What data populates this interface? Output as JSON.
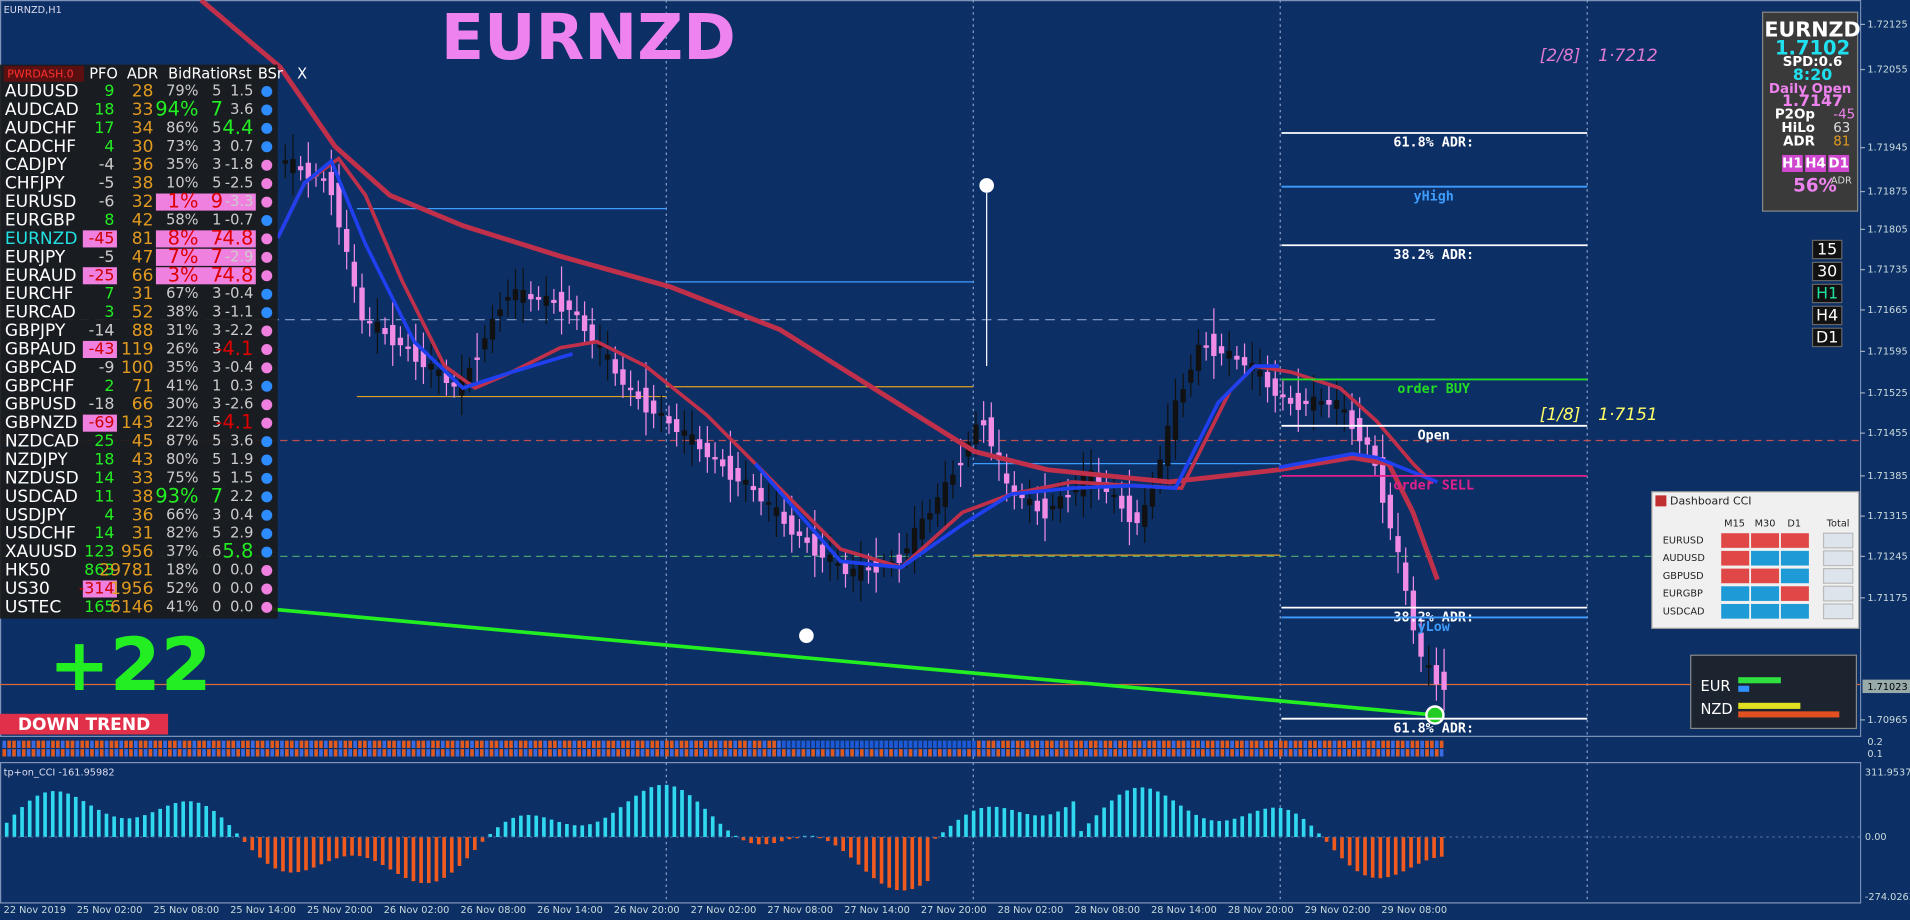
{
  "window": {
    "symbol_tag": "EURNZD,H1",
    "title": "EURNZD"
  },
  "price_axis": {
    "labels": [
      "1.72125",
      "1.72055",
      "1.71945",
      "1.71875",
      "1.71805",
      "1.71735",
      "1.71665",
      "1.71595",
      "1.71525",
      "1.71455",
      "1.71385",
      "1.71315",
      "1.71245",
      "1.71175",
      "1.70965"
    ],
    "current": "1.71023"
  },
  "time_axis": [
    "22 Nov 2019",
    "25 Nov 02:00",
    "25 Nov 08:00",
    "25 Nov 14:00",
    "25 Nov 20:00",
    "26 Nov 02:00",
    "26 Nov 08:00",
    "26 Nov 14:00",
    "26 Nov 20:00",
    "27 Nov 02:00",
    "27 Nov 08:00",
    "27 Nov 14:00",
    "27 Nov 20:00",
    "28 Nov 02:00",
    "28 Nov 08:00",
    "28 Nov 14:00",
    "28 Nov 20:00",
    "29 Nov 02:00",
    "29 Nov 08:00"
  ],
  "levels": [
    {
      "label": "61.8% ADR:",
      "color": "#ffffff"
    },
    {
      "label": "yHigh",
      "color": "#3f9cff"
    },
    {
      "label": "38.2% ADR:",
      "color": "#ffffff"
    },
    {
      "label": "order BUY",
      "color": "#22dd22"
    },
    {
      "label": "Open",
      "color": "#ffffff"
    },
    {
      "label": "order SELL",
      "color": "#e0208a"
    },
    {
      "label": "38.2% ADR:",
      "color": "#ffffff"
    },
    {
      "label": "yLow",
      "color": "#3f9cff"
    },
    {
      "label": "61.8% ADR:",
      "color": "#ffffff"
    }
  ],
  "murrey": [
    {
      "label": "[2/8]",
      "price": "1·7212",
      "color": "#e07ad0"
    },
    {
      "label": "[1/8]",
      "price": "1·7151",
      "color": "#ffff66"
    }
  ],
  "dashboard": {
    "name": "PWRDASH.0",
    "headers": [
      "PFO",
      "ADR",
      "BidRatio",
      "Rst",
      "BSr",
      "X"
    ],
    "rows": [
      [
        "AUDUSD",
        "9",
        "28",
        "79%",
        "5",
        "1.5"
      ],
      [
        "AUDCAD",
        "18",
        "33",
        "94%",
        "7",
        "3.6"
      ],
      [
        "AUDCHF",
        "17",
        "34",
        "86%",
        "5",
        "4.4"
      ],
      [
        "CADCHF",
        "4",
        "30",
        "73%",
        "3",
        "0.7"
      ],
      [
        "CADJPY",
        "-4",
        "36",
        "35%",
        "3",
        "-1.8"
      ],
      [
        "CHFJPY",
        "-5",
        "38",
        "10%",
        "5",
        "-2.5"
      ],
      [
        "EURUSD",
        "-6",
        "32",
        "1%",
        "9",
        "-3.3"
      ],
      [
        "EURGBP",
        "8",
        "42",
        "58%",
        "1",
        "-0.7"
      ],
      [
        "EURNZD",
        "-45",
        "81",
        "8%",
        "7",
        "-4.8"
      ],
      [
        "EURJPY",
        "-5",
        "47",
        "7%",
        "7",
        "-2.9"
      ],
      [
        "EURAUD",
        "-25",
        "66",
        "3%",
        "7",
        "-4.8"
      ],
      [
        "EURCHF",
        "7",
        "31",
        "67%",
        "3",
        "-0.4"
      ],
      [
        "EURCAD",
        "3",
        "52",
        "38%",
        "3",
        "-1.1"
      ],
      [
        "GBPJPY",
        "-14",
        "88",
        "31%",
        "3",
        "-2.2"
      ],
      [
        "GBPAUD",
        "-43",
        "119",
        "26%",
        "3",
        "-4.1"
      ],
      [
        "GBPCAD",
        "-9",
        "100",
        "35%",
        "3",
        "-0.4"
      ],
      [
        "GBPCHF",
        "2",
        "71",
        "41%",
        "1",
        "0.3"
      ],
      [
        "GBPUSD",
        "-18",
        "66",
        "30%",
        "3",
        "-2.6"
      ],
      [
        "GBPNZD",
        "-69",
        "143",
        "22%",
        "5",
        "-4.1"
      ],
      [
        "NZDCAD",
        "25",
        "45",
        "87%",
        "5",
        "3.6"
      ],
      [
        "NZDJPY",
        "18",
        "43",
        "80%",
        "5",
        "1.9"
      ],
      [
        "NZDUSD",
        "14",
        "33",
        "75%",
        "5",
        "1.5"
      ],
      [
        "USDCAD",
        "11",
        "38",
        "93%",
        "7",
        "2.2"
      ],
      [
        "USDJPY",
        "4",
        "36",
        "66%",
        "3",
        "0.4"
      ],
      [
        "USDCHF",
        "14",
        "31",
        "82%",
        "5",
        "2.9"
      ],
      [
        "XAUUSD",
        "123",
        "956",
        "37%",
        "6",
        "5.8"
      ],
      [
        "HK50",
        "863",
        "29781",
        "18%",
        "0",
        "0.0"
      ],
      [
        "US30",
        "-314",
        "1956",
        "52%",
        "0",
        "0.0"
      ],
      [
        "USTEC",
        "165",
        "6146",
        "41%",
        "0",
        "0.0"
      ]
    ]
  },
  "trend": {
    "score": "+22",
    "label": "DOWN TREND"
  },
  "info_panel": {
    "symbol": "EURNZD",
    "bid": "1.7102",
    "spread": "SPD:0.6",
    "timer": "8:20",
    "daily_open_label": "Daily Open",
    "daily_open": "1.7147",
    "rows": [
      [
        "P2Op",
        "-45"
      ],
      [
        "HiLo",
        "63"
      ],
      [
        "ADR",
        "81"
      ]
    ],
    "tabs": [
      "H1",
      "H4",
      "D1"
    ],
    "pct": "56%",
    "pct_label": "ADR"
  },
  "timeframes": [
    "15",
    "30",
    "H1",
    "H4",
    "D1"
  ],
  "cci_dashboard": {
    "title": "Dashboard CCI",
    "headers": [
      "M15",
      "M30",
      "D1",
      "Total"
    ],
    "rows": [
      {
        "symbol": "EURUSD",
        "cells": [
          "#e04848",
          "#e04848",
          "#e04848"
        ]
      },
      {
        "symbol": "AUDUSD",
        "cells": [
          "#e04848",
          "#1e9ad6",
          "#1e9ad6"
        ]
      },
      {
        "symbol": "GBPUSD",
        "cells": [
          "#e04848",
          "#e04848",
          "#1e9ad6"
        ]
      },
      {
        "symbol": "EURGBP",
        "cells": [
          "#1e9ad6",
          "#1e9ad6",
          "#e04848"
        ]
      },
      {
        "symbol": "USDCAD",
        "cells": [
          "#1e9ad6",
          "#1e9ad6",
          "#1e9ad6"
        ]
      }
    ]
  },
  "strength": {
    "labels": [
      "EUR",
      "NZD"
    ]
  },
  "indicator": {
    "label": "tp+on_CCI -161.95982",
    "axis": [
      "311.9537",
      "0.00",
      "-274.0263"
    ],
    "strip_axis": [
      "0.2",
      "0.1"
    ]
  }
}
